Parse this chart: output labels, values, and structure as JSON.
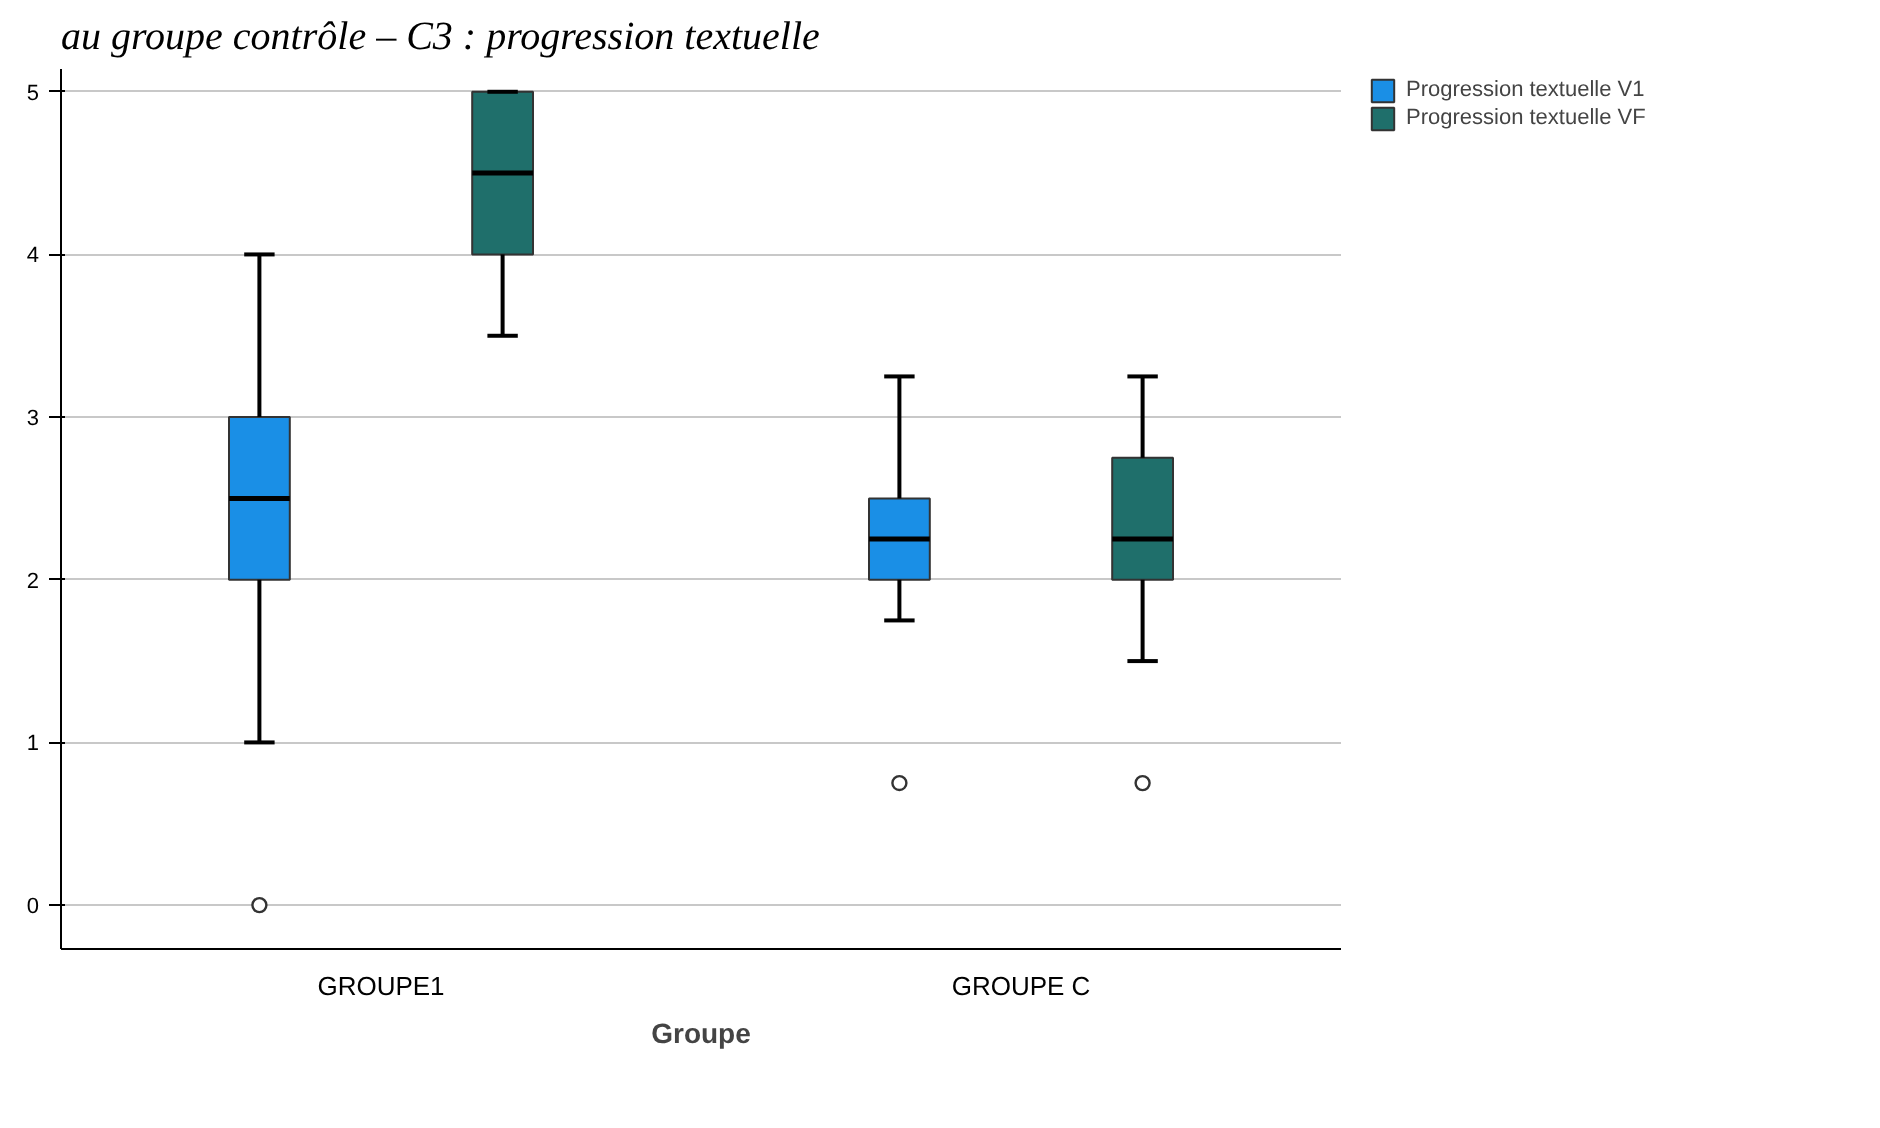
{
  "chart_data": {
    "type": "box",
    "title": "au groupe contrôle – C3 : progression textuelle",
    "xlabel": "Groupe",
    "categories": [
      "GROUPE1",
      "GROUPE C"
    ],
    "series": [
      {
        "name": "Progression textuelle V1",
        "color": "#1a8fe6",
        "boxes": [
          {
            "low": 1,
            "q1": 2,
            "median": 2.5,
            "q3": 3,
            "high": 4,
            "outliers": [
              0
            ]
          },
          {
            "low": 1.75,
            "q1": 2,
            "median": 2.25,
            "q3": 2.5,
            "high": 3.25,
            "outliers": [
              0.75
            ]
          }
        ]
      },
      {
        "name": "Progression textuelle VF",
        "color": "#1f6f6b",
        "boxes": [
          {
            "low": 3.5,
            "q1": 4,
            "median": 4.5,
            "q3": 5,
            "high": 5
          },
          {
            "low": 1.5,
            "q1": 2,
            "median": 2.25,
            "q3": 2.75,
            "high": 3.25,
            "outliers": [
              0.75
            ]
          }
        ]
      }
    ],
    "ylim": [
      -0.27,
      5.14
    ],
    "yticks": [
      0,
      1,
      2,
      3,
      4,
      5
    ],
    "grid": "y",
    "legend": "top right"
  }
}
